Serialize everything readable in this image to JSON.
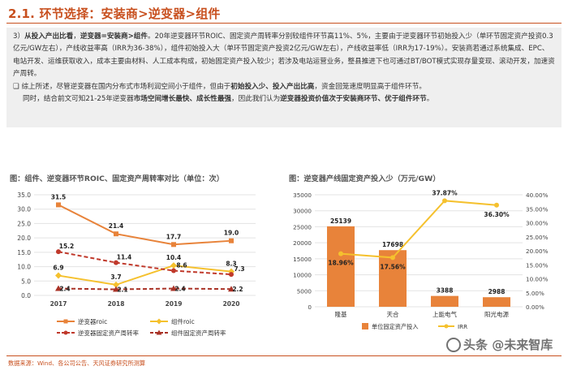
{
  "header": {
    "title": "2.1. 环节选择：安装商>逆变器>组件"
  },
  "text": {
    "p1_num": "3）",
    "p1_b1": "从投入产出比看",
    "p1_t1": "，",
    "p1_b2": "逆变器=安装商>组件",
    "p1_t2": "。20年逆变器环节ROIC、固定资产周转率分别较组件环节高11%、5%，主要由于逆变器环节初始投入少（单环节固定资产投资0.3亿元/GW左右），产线收益率高（IRR为36-38%），组件初始投入大（单环节固定资产投资2亿元/GW左右），产线收益率低（IRR为17-19%）。安装商若通过系统集成、EPC、电站开发、运维获取收入，成本主要由材料、人工成本构成，初始固定资产投入较少；若涉及电站运营业务，整县推进下也可通过BT/BOT模式实现存量变现、滚动开发，加速资产周转。",
    "p2_mark": "❑",
    "p2_t1": " 综上所述，尽管逆变器在国内分布式市场利润空间小于组件，但由于",
    "p2_b1": "初始投入少、投入产出比高",
    "p2_t2": "，资金回笼速度明显高于组件环节。",
    "p3_t1": "同时，结合前文可知21-25年逆变器",
    "p3_b1": "市场空间增长最快、成长性最强",
    "p3_t2": "，因此我们认为",
    "p3_b2": "逆变器投资价值次于安装商环节、优于组件环节",
    "p3_t3": "。"
  },
  "left_chart_title": "图：组件、逆变器环节ROIC、固定资产周转率对比（单位：次）",
  "right_chart_title": "图：逆变器产线固定资产投入少（万元/GW）",
  "chart_data": [
    {
      "type": "line",
      "title": "图：组件、逆变器环节ROIC、固定资产周转率对比（单位：次）",
      "categories": [
        "2017",
        "2018",
        "2019",
        "2020"
      ],
      "ylim": [
        0,
        35
      ],
      "yticks": [
        "0.0",
        "5.0",
        "10.0",
        "15.0",
        "20.0",
        "25.0",
        "30.0",
        "35.0"
      ],
      "series": [
        {
          "name": "逆变器roic",
          "values": [
            31.5,
            21.4,
            17.7,
            19.0
          ],
          "labels": [
            "31.5",
            "21.4",
            "17.7",
            "19.0"
          ],
          "color": "#e8833a",
          "style": "solid-square"
        },
        {
          "name": "组件roic",
          "values": [
            6.9,
            3.7,
            10.4,
            8.3
          ],
          "labels": [
            "6.9",
            "3.7",
            "10.4",
            "8.3"
          ],
          "color": "#f5c12e",
          "style": "solid-diamond"
        },
        {
          "name": "逆变器固定资产周转率",
          "values": [
            15.2,
            11.4,
            8.6,
            7.3
          ],
          "labels": [
            "15.2",
            "11.4",
            "8.6",
            "7.3"
          ],
          "color": "#c0392b",
          "style": "dash-circle"
        },
        {
          "name": "组件固定资产周转率",
          "values": [
            2.4,
            2.1,
            2.4,
            2.2
          ],
          "labels": [
            "2.4",
            "2.1",
            "2.4",
            "2.2"
          ],
          "color": "#a93226",
          "style": "dash-triangle"
        }
      ],
      "legend": "bottom"
    },
    {
      "type": "bar",
      "title": "图：逆变器产线固定资产投入少（万元/GW）",
      "categories": [
        "隆基",
        "天合",
        "上能电气",
        "阳光电源"
      ],
      "ylim": [
        0,
        35000
      ],
      "yticks": [
        "0",
        "5000",
        "10000",
        "15000",
        "20000",
        "25000",
        "30000",
        "35000"
      ],
      "y2lim": [
        0,
        40
      ],
      "y2ticks": [
        "0.00%",
        "5.00%",
        "10.00%",
        "15.00%",
        "20.00%",
        "25.00%",
        "30.00%",
        "35.00%",
        "40.00%"
      ],
      "series": [
        {
          "name": "单位固定资产投入",
          "values": [
            25139,
            17698,
            3388,
            2988
          ],
          "labels": [
            "25139",
            "17698",
            "3388",
            "2988"
          ],
          "color": "#e8833a",
          "axis": "left"
        },
        {
          "name": "IRR",
          "values": [
            18.96,
            17.56,
            37.87,
            36.3
          ],
          "labels": [
            "18.96%",
            "17.56%",
            "37.87%",
            "36.30%"
          ],
          "color": "#f5c12e",
          "axis": "right"
        }
      ],
      "legend": "bottom"
    }
  ],
  "footer": {
    "source": "数据来源：Wind、各公司公告、天风证券研究所测算"
  },
  "watermark": {
    "text": "头条 @未来智库"
  }
}
